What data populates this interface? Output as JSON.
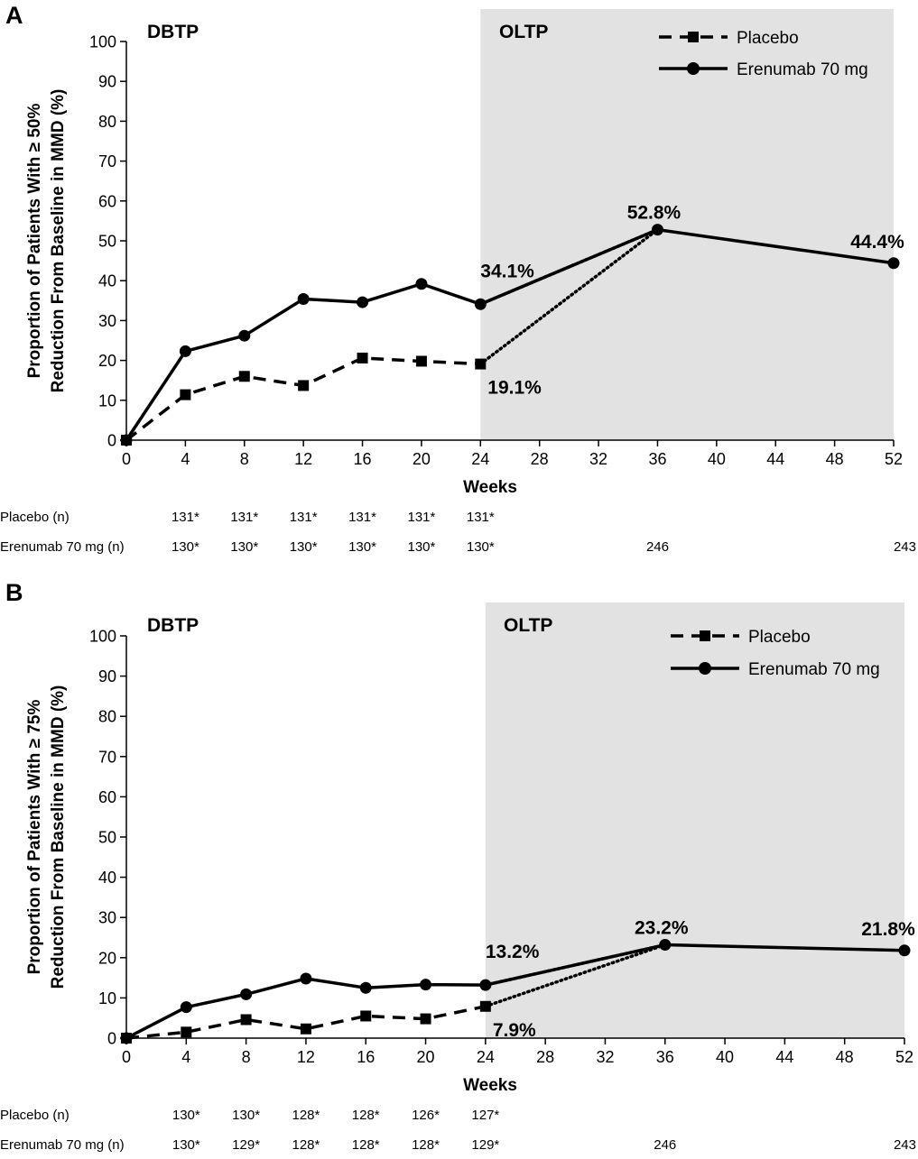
{
  "chart_data": [
    {
      "panel_label": "A",
      "type": "line",
      "xlabel": "Weeks",
      "ylabel_lines": [
        "Proportion of Patients With ≥ 50%",
        "Reduction From Baseline in MMD (%)"
      ],
      "xlim": [
        0,
        52
      ],
      "ylim": [
        0,
        100
      ],
      "x_ticks": [
        0,
        4,
        8,
        12,
        16,
        20,
        24,
        28,
        32,
        36,
        40,
        44,
        48,
        52
      ],
      "y_ticks": [
        0,
        10,
        20,
        30,
        40,
        50,
        60,
        70,
        80,
        90,
        100
      ],
      "periods": [
        {
          "label": "DBTP",
          "x_start": 0,
          "x_end": 24,
          "shaded": false
        },
        {
          "label": "OLTP",
          "x_start": 24,
          "x_end": 52,
          "shaded": true,
          "color": "#e2e2e2"
        }
      ],
      "legend_position": "top-right",
      "series": [
        {
          "name": "Placebo",
          "style": "dashed",
          "marker": "square",
          "x": [
            0,
            4,
            8,
            12,
            16,
            20,
            24
          ],
          "y": [
            0,
            11.4,
            16.0,
            13.7,
            20.6,
            19.8,
            19.1
          ]
        },
        {
          "name": "Erenumab 70 mg",
          "style": "solid",
          "marker": "circle",
          "x": [
            0,
            4,
            8,
            12,
            16,
            20,
            24,
            36,
            52
          ],
          "y": [
            0,
            22.3,
            26.2,
            35.4,
            34.6,
            39.2,
            34.1,
            52.8,
            44.4
          ]
        }
      ],
      "transition_links": [
        {
          "from": [
            24,
            34.1
          ],
          "to": [
            36,
            52.8
          ]
        },
        {
          "from": [
            24,
            19.1
          ],
          "to": [
            36,
            52.8
          ]
        }
      ],
      "annotations": [
        {
          "text": "34.1%",
          "x": 24,
          "y": 34.1,
          "anchor": "above-right"
        },
        {
          "text": "19.1%",
          "x": 24,
          "y": 19.1,
          "anchor": "below-right"
        },
        {
          "text": "52.8%",
          "x": 36,
          "y": 52.8,
          "anchor": "above"
        },
        {
          "text": "44.4%",
          "x": 52,
          "y": 44.4,
          "anchor": "above-left"
        }
      ],
      "n_table": {
        "rows": [
          {
            "label": "Placebo (n)",
            "cells": [
              {
                "x": 4,
                "text": "131*"
              },
              {
                "x": 8,
                "text": "131*"
              },
              {
                "x": 12,
                "text": "131*"
              },
              {
                "x": 16,
                "text": "131*"
              },
              {
                "x": 20,
                "text": "131*"
              },
              {
                "x": 24,
                "text": "131*"
              }
            ]
          },
          {
            "label": "Erenumab 70 mg (n)",
            "cells": [
              {
                "x": 4,
                "text": "130*"
              },
              {
                "x": 8,
                "text": "130*"
              },
              {
                "x": 12,
                "text": "130*"
              },
              {
                "x": 16,
                "text": "130*"
              },
              {
                "x": 20,
                "text": "130*"
              },
              {
                "x": 24,
                "text": "130*"
              },
              {
                "x": 36,
                "text": "246"
              },
              {
                "x": 52,
                "text": "243"
              }
            ]
          }
        ]
      }
    },
    {
      "panel_label": "B",
      "type": "line",
      "xlabel": "Weeks",
      "ylabel_lines": [
        "Proportion of Patients With ≥ 75%",
        "Reduction From Baseline in MMD (%)"
      ],
      "xlim": [
        0,
        52
      ],
      "ylim": [
        0,
        100
      ],
      "x_ticks": [
        0,
        4,
        8,
        12,
        16,
        20,
        24,
        28,
        32,
        36,
        40,
        44,
        48,
        52
      ],
      "y_ticks": [
        0,
        10,
        20,
        30,
        40,
        50,
        60,
        70,
        80,
        90,
        100
      ],
      "periods": [
        {
          "label": "DBTP",
          "x_start": 0,
          "x_end": 24,
          "shaded": false
        },
        {
          "label": "OLTP",
          "x_start": 24,
          "x_end": 52,
          "shaded": true,
          "color": "#e2e2e2"
        }
      ],
      "legend_position": "top-right",
      "series": [
        {
          "name": "Placebo",
          "style": "dashed",
          "marker": "square",
          "x": [
            0,
            4,
            8,
            12,
            16,
            20,
            24
          ],
          "y": [
            0,
            1.5,
            4.6,
            2.3,
            5.5,
            4.8,
            7.9
          ]
        },
        {
          "name": "Erenumab 70 mg",
          "style": "solid",
          "marker": "circle",
          "x": [
            0,
            4,
            8,
            12,
            16,
            20,
            24,
            36,
            52
          ],
          "y": [
            0,
            7.7,
            10.9,
            14.8,
            12.5,
            13.3,
            13.2,
            23.2,
            21.8
          ]
        }
      ],
      "transition_links": [
        {
          "from": [
            24,
            13.2
          ],
          "to": [
            36,
            23.2
          ]
        },
        {
          "from": [
            24,
            7.9
          ],
          "to": [
            36,
            23.2
          ]
        }
      ],
      "annotations": [
        {
          "text": "13.2%",
          "x": 24,
          "y": 13.2,
          "anchor": "above-right"
        },
        {
          "text": "7.9%",
          "x": 24,
          "y": 7.9,
          "anchor": "below-right"
        },
        {
          "text": "23.2%",
          "x": 36,
          "y": 23.2,
          "anchor": "above"
        },
        {
          "text": "21.8%",
          "x": 52,
          "y": 21.8,
          "anchor": "above-left"
        }
      ],
      "n_table": {
        "rows": [
          {
            "label": "Placebo (n)",
            "cells": [
              {
                "x": 4,
                "text": "130*"
              },
              {
                "x": 8,
                "text": "130*"
              },
              {
                "x": 12,
                "text": "128*"
              },
              {
                "x": 16,
                "text": "128*"
              },
              {
                "x": 20,
                "text": "126*"
              },
              {
                "x": 24,
                "text": "127*"
              }
            ]
          },
          {
            "label": "Erenumab 70 mg (n)",
            "cells": [
              {
                "x": 4,
                "text": "130*"
              },
              {
                "x": 8,
                "text": "129*"
              },
              {
                "x": 12,
                "text": "128*"
              },
              {
                "x": 16,
                "text": "128*"
              },
              {
                "x": 20,
                "text": "128*"
              },
              {
                "x": 24,
                "text": "129*"
              },
              {
                "x": 36,
                "text": "246"
              },
              {
                "x": 52,
                "text": "243"
              }
            ]
          }
        ]
      }
    }
  ]
}
